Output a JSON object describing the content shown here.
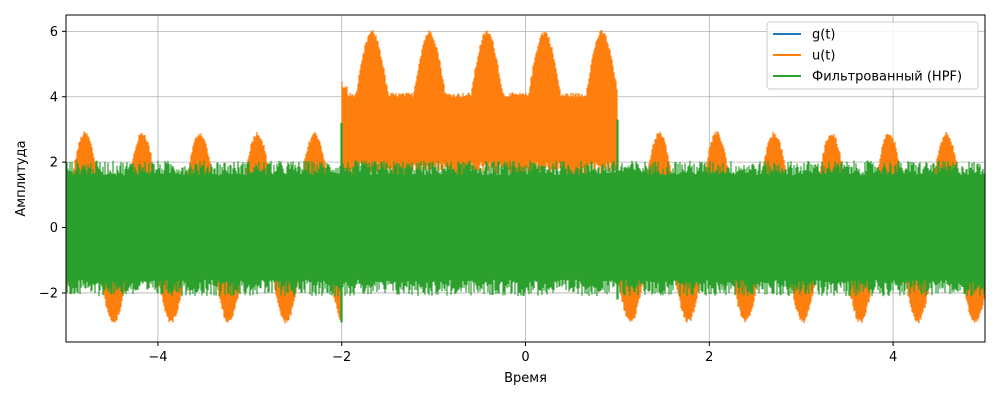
{
  "chart_data": {
    "type": "line",
    "title": "",
    "xlabel": "Время",
    "ylabel": "Амплитуда",
    "xlim": [
      -5,
      5
    ],
    "ylim": [
      -3.5,
      6.5
    ],
    "xticks": [
      -4,
      -2,
      0,
      2,
      4
    ],
    "yticks": [
      -2,
      0,
      2,
      4,
      6
    ],
    "xtick_labels": [
      "−4",
      "−2",
      "0",
      "2",
      "4"
    ],
    "ytick_labels": [
      "−2",
      "0",
      "2",
      "4",
      "6"
    ],
    "grid": true,
    "legend_position": "top-right",
    "series": [
      {
        "name": "g(t)",
        "color": "#1f77b4",
        "description": "rectangular pulse of height 3 between t=-2 and t=1, zero elsewhere (hidden behind u(t))"
      },
      {
        "name": "u(t)",
        "color": "#ff7f0e",
        "envelope_outside_pulse": [
          -3.0,
          3.0
        ],
        "envelope_inside_pulse": [
          1.0,
          6.0
        ],
        "pulse_interval": [
          -2,
          1
        ],
        "low_frequency_period": 0.625
      },
      {
        "name": "Фильтрованный (HPF)",
        "color": "#2ca02c",
        "envelope": [
          -2.2,
          2.2
        ],
        "edge_spikes": [
          -2,
          1
        ]
      }
    ]
  }
}
